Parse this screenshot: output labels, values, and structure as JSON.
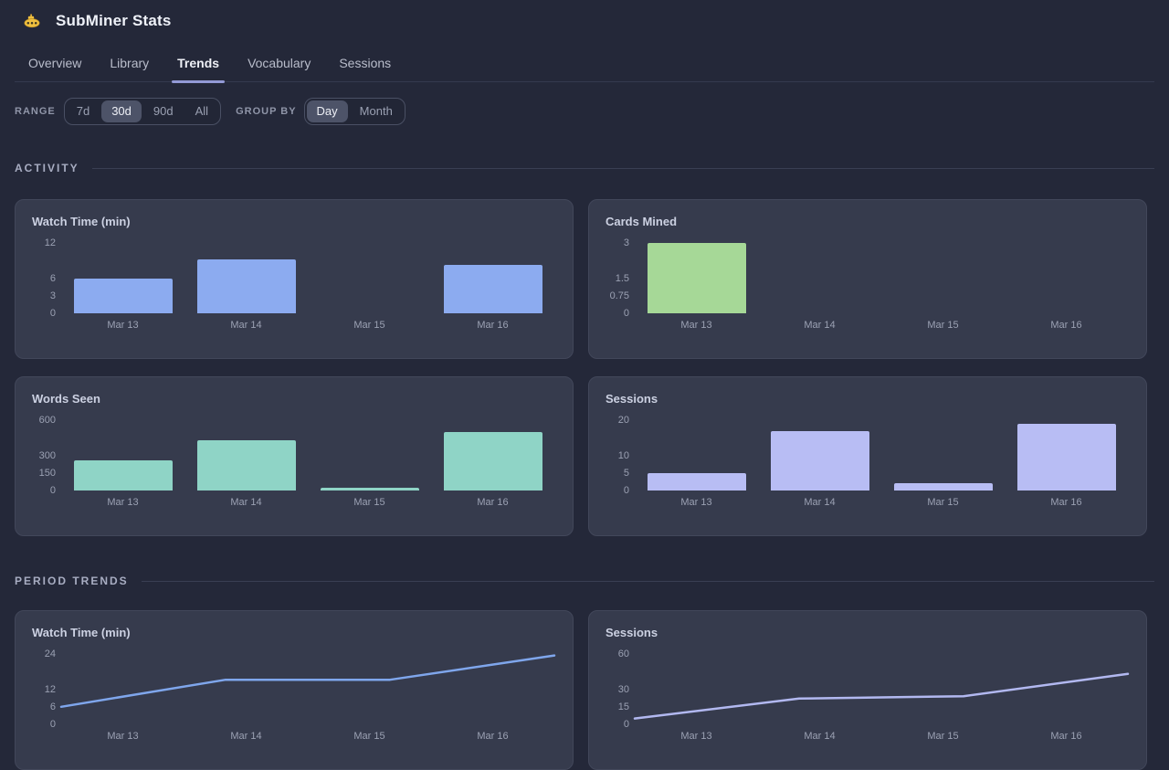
{
  "app": {
    "title": "SubMiner Stats",
    "icon": "submarine-icon"
  },
  "tabs": [
    {
      "label": "Overview",
      "active": false
    },
    {
      "label": "Library",
      "active": false
    },
    {
      "label": "Trends",
      "active": true
    },
    {
      "label": "Vocabulary",
      "active": false
    },
    {
      "label": "Sessions",
      "active": false
    }
  ],
  "controls": {
    "range": {
      "label": "RANGE",
      "options": [
        "7d",
        "30d",
        "90d",
        "All"
      ],
      "selected": "30d"
    },
    "group_by": {
      "label": "GROUP BY",
      "options": [
        "Day",
        "Month"
      ],
      "selected": "Day"
    }
  },
  "sections": {
    "activity": "ACTIVITY",
    "period_trends": "PERIOD TRENDS"
  },
  "colors": {
    "page_bg": "#242839",
    "card_bg": "#363b4d",
    "tab_underline": "#939ad6",
    "watch_bar": "#8cabf0",
    "cards_bar": "#a6d897",
    "words_bar": "#8fd4c6",
    "sessions_bar": "#b8bdf4",
    "watch_line": "#7fa6ec",
    "sessions_line": "#b2b8f0"
  },
  "chart_data": [
    {
      "section": "ACTIVITY",
      "type": "bar",
      "title": "Watch Time (min)",
      "categories": [
        "Mar 13",
        "Mar 14",
        "Mar 15",
        "Mar 16"
      ],
      "values": [
        6,
        9.2,
        0,
        8.3
      ],
      "yticks": [
        12,
        6,
        3,
        0
      ],
      "ylim": [
        0,
        12
      ],
      "grid": false,
      "legend": false,
      "color": "#8cabf0"
    },
    {
      "section": "ACTIVITY",
      "type": "bar",
      "title": "Cards Mined",
      "categories": [
        "Mar 13",
        "Mar 14",
        "Mar 15",
        "Mar 16"
      ],
      "values": [
        3,
        0,
        0,
        0
      ],
      "yticks": [
        3,
        1.5,
        0.75,
        0
      ],
      "ylim": [
        0,
        3
      ],
      "grid": false,
      "legend": false,
      "color": "#a6d897"
    },
    {
      "section": "ACTIVITY",
      "type": "bar",
      "title": "Words Seen",
      "categories": [
        "Mar 13",
        "Mar 14",
        "Mar 15",
        "Mar 16"
      ],
      "values": [
        254,
        431,
        25,
        502
      ],
      "yticks": [
        600,
        300,
        150,
        0
      ],
      "ylim": [
        0,
        600
      ],
      "grid": false,
      "legend": false,
      "color": "#8fd4c6"
    },
    {
      "section": "ACTIVITY",
      "type": "bar",
      "title": "Sessions",
      "categories": [
        "Mar 13",
        "Mar 14",
        "Mar 15",
        "Mar 16"
      ],
      "values": [
        5,
        17,
        2,
        19
      ],
      "yticks": [
        20,
        10,
        5,
        0
      ],
      "ylim": [
        0,
        20
      ],
      "grid": false,
      "legend": false,
      "color": "#b8bdf4"
    },
    {
      "section": "PERIOD TRENDS",
      "type": "line",
      "title": "Watch Time (min)",
      "categories": [
        "Mar 13",
        "Mar 14",
        "Mar 15",
        "Mar 16"
      ],
      "values": [
        6,
        15.2,
        15.2,
        23.5
      ],
      "yticks": [
        24,
        12,
        6,
        0
      ],
      "ylim": [
        0,
        24
      ],
      "grid": false,
      "legend": false,
      "color": "#7fa6ec"
    },
    {
      "section": "PERIOD TRENDS",
      "type": "line",
      "title": "Sessions",
      "categories": [
        "Mar 13",
        "Mar 14",
        "Mar 15",
        "Mar 16"
      ],
      "values": [
        5,
        22,
        24,
        43
      ],
      "yticks": [
        60,
        30,
        15,
        0
      ],
      "ylim": [
        0,
        60
      ],
      "grid": false,
      "legend": false,
      "color": "#b2b8f0"
    }
  ]
}
